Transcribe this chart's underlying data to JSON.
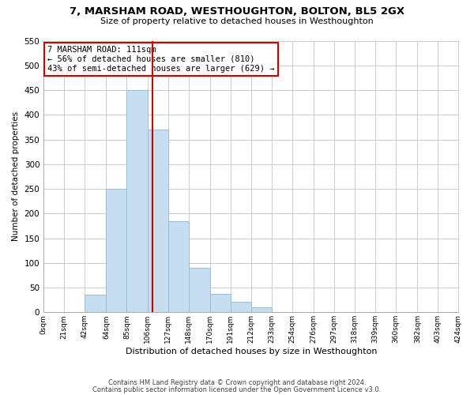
{
  "title": "7, MARSHAM ROAD, WESTHOUGHTON, BOLTON, BL5 2GX",
  "subtitle": "Size of property relative to detached houses in Westhoughton",
  "xlabel": "Distribution of detached houses by size in Westhoughton",
  "ylabel": "Number of detached properties",
  "footnote1": "Contains HM Land Registry data © Crown copyright and database right 2024.",
  "footnote2": "Contains public sector information licensed under the Open Government Licence v3.0.",
  "bar_edges": [
    0,
    21,
    42,
    64,
    85,
    106,
    127,
    148,
    170,
    191,
    212,
    233,
    254,
    276,
    297,
    318,
    339,
    360,
    382,
    403,
    424
  ],
  "bar_heights": [
    0,
    0,
    35,
    250,
    450,
    370,
    185,
    90,
    38,
    22,
    10,
    0,
    0,
    0,
    0,
    0,
    0,
    0,
    0,
    0
  ],
  "bar_color": "#c6dff0",
  "bar_edgecolor": "#9bbcd8",
  "property_size": 111,
  "vline_color": "#cc0000",
  "annotation_line1": "7 MARSHAM ROAD: 111sqm",
  "annotation_line2": "← 56% of detached houses are smaller (810)",
  "annotation_line3": "43% of semi-detached houses are larger (629) →",
  "annotation_boxcolor": "white",
  "annotation_edgecolor": "#cc0000",
  "ylim": [
    0,
    550
  ],
  "yticks": [
    0,
    50,
    100,
    150,
    200,
    250,
    300,
    350,
    400,
    450,
    500,
    550
  ],
  "tick_labels": [
    "0sqm",
    "21sqm",
    "42sqm",
    "64sqm",
    "85sqm",
    "106sqm",
    "127sqm",
    "148sqm",
    "170sqm",
    "191sqm",
    "212sqm",
    "233sqm",
    "254sqm",
    "276sqm",
    "297sqm",
    "318sqm",
    "339sqm",
    "360sqm",
    "382sqm",
    "403sqm",
    "424sqm"
  ],
  "grid_color": "#cccccc",
  "background_color": "#ffffff"
}
